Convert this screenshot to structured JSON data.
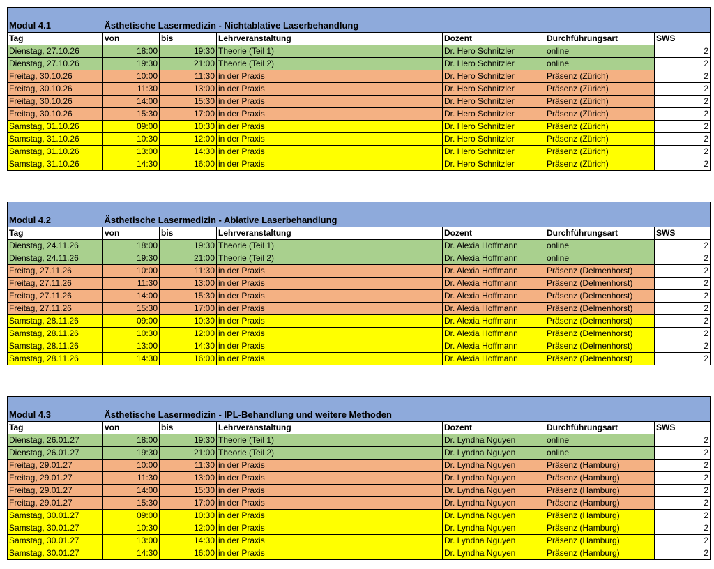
{
  "colors": {
    "header_band": "#8eaadb",
    "online_row": "#a9d08e",
    "friday_row": "#f4b183",
    "saturday_row": "#ffff00"
  },
  "columns": [
    "Tag",
    "von",
    "bis",
    "Lehrveranstaltung",
    "Dozent",
    "Durchführungsart",
    "SWS"
  ],
  "modules": [
    {
      "code": "Modul 4.1",
      "title": "Ästhetische Lasermedizin - Nichtablative Laserbehandlung",
      "rows": [
        {
          "tag": "Dienstag, 27.10.26",
          "von": "18:00",
          "bis": "19:30",
          "lehr": "Theorie (Teil 1)",
          "dozent": "Dr. Hero Schnitzler",
          "art": "online",
          "sws": "2",
          "kind": "online"
        },
        {
          "tag": "Dienstag, 27.10.26",
          "von": "19:30",
          "bis": "21:00",
          "lehr": "Theorie (Teil 2)",
          "dozent": "Dr. Hero Schnitzler",
          "art": "online",
          "sws": "2",
          "kind": "online"
        },
        {
          "tag": "Freitag, 30.10.26",
          "von": "10:00",
          "bis": "11:30",
          "lehr": "in der Praxis",
          "dozent": "Dr. Hero Schnitzler",
          "art": "Präsenz (Zürich)",
          "sws": "2",
          "kind": "friday"
        },
        {
          "tag": "Freitag, 30.10.26",
          "von": "11:30",
          "bis": "13:00",
          "lehr": "in der Praxis",
          "dozent": "Dr. Hero Schnitzler",
          "art": "Präsenz (Zürich)",
          "sws": "2",
          "kind": "friday"
        },
        {
          "tag": "Freitag, 30.10.26",
          "von": "14:00",
          "bis": "15:30",
          "lehr": "in der Praxis",
          "dozent": "Dr. Hero Schnitzler",
          "art": "Präsenz (Zürich)",
          "sws": "2",
          "kind": "friday"
        },
        {
          "tag": "Freitag, 30.10.26",
          "von": "15:30",
          "bis": "17:00",
          "lehr": "in der Praxis",
          "dozent": "Dr. Hero Schnitzler",
          "art": "Präsenz (Zürich)",
          "sws": "2",
          "kind": "friday"
        },
        {
          "tag": "Samstag, 31.10.26",
          "von": "09:00",
          "bis": "10:30",
          "lehr": "in der Praxis",
          "dozent": "Dr. Hero Schnitzler",
          "art": "Präsenz (Zürich)",
          "sws": "2",
          "kind": "saturday"
        },
        {
          "tag": "Samstag, 31.10.26",
          "von": "10:30",
          "bis": "12:00",
          "lehr": "in der Praxis",
          "dozent": "Dr. Hero Schnitzler",
          "art": "Präsenz (Zürich)",
          "sws": "2",
          "kind": "saturday"
        },
        {
          "tag": "Samstag, 31.10.26",
          "von": "13:00",
          "bis": "14:30",
          "lehr": "in der Praxis",
          "dozent": "Dr. Hero Schnitzler",
          "art": "Präsenz (Zürich)",
          "sws": "2",
          "kind": "saturday"
        },
        {
          "tag": "Samstag, 31.10.26",
          "von": "14:30",
          "bis": "16:00",
          "lehr": "in der Praxis",
          "dozent": "Dr. Hero Schnitzler",
          "art": "Präsenz (Zürich)",
          "sws": "2",
          "kind": "saturday"
        }
      ]
    },
    {
      "code": "Modul 4.2",
      "title": "Ästhetische Lasermedizin - Ablative Laserbehandlung",
      "rows": [
        {
          "tag": "Dienstag, 24.11.26",
          "von": "18:00",
          "bis": "19:30",
          "lehr": "Theorie (Teil 1)",
          "dozent": "Dr. Alexia Hoffmann",
          "art": "online",
          "sws": "2",
          "kind": "online"
        },
        {
          "tag": "Dienstag, 24.11.26",
          "von": "19:30",
          "bis": "21:00",
          "lehr": "Theorie (Teil 2)",
          "dozent": "Dr. Alexia Hoffmann",
          "art": "online",
          "sws": "2",
          "kind": "online"
        },
        {
          "tag": "Freitag, 27.11.26",
          "von": "10:00",
          "bis": "11:30",
          "lehr": "in der Praxis",
          "dozent": "Dr. Alexia Hoffmann",
          "art": "Präsenz (Delmenhorst)",
          "sws": "2",
          "kind": "friday"
        },
        {
          "tag": "Freitag, 27.11.26",
          "von": "11:30",
          "bis": "13:00",
          "lehr": "in der Praxis",
          "dozent": "Dr. Alexia Hoffmann",
          "art": "Präsenz (Delmenhorst)",
          "sws": "2",
          "kind": "friday"
        },
        {
          "tag": "Freitag, 27.11.26",
          "von": "14:00",
          "bis": "15:30",
          "lehr": "in der Praxis",
          "dozent": "Dr. Alexia Hoffmann",
          "art": "Präsenz (Delmenhorst)",
          "sws": "2",
          "kind": "friday"
        },
        {
          "tag": "Freitag, 27.11.26",
          "von": "15:30",
          "bis": "17:00",
          "lehr": "in der Praxis",
          "dozent": "Dr. Alexia Hoffmann",
          "art": "Präsenz (Delmenhorst)",
          "sws": "2",
          "kind": "friday"
        },
        {
          "tag": "Samstag, 28.11.26",
          "von": "09:00",
          "bis": "10:30",
          "lehr": "in der Praxis",
          "dozent": "Dr. Alexia Hoffmann",
          "art": "Präsenz (Delmenhorst)",
          "sws": "2",
          "kind": "saturday"
        },
        {
          "tag": "Samstag, 28.11.26",
          "von": "10:30",
          "bis": "12:00",
          "lehr": "in der Praxis",
          "dozent": "Dr. Alexia Hoffmann",
          "art": "Präsenz (Delmenhorst)",
          "sws": "2",
          "kind": "saturday"
        },
        {
          "tag": "Samstag, 28.11.26",
          "von": "13:00",
          "bis": "14:30",
          "lehr": "in der Praxis",
          "dozent": "Dr. Alexia Hoffmann",
          "art": "Präsenz (Delmenhorst)",
          "sws": "2",
          "kind": "saturday"
        },
        {
          "tag": "Samstag, 28.11.26",
          "von": "14:30",
          "bis": "16:00",
          "lehr": "in der Praxis",
          "dozent": "Dr. Alexia Hoffmann",
          "art": "Präsenz (Delmenhorst)",
          "sws": "2",
          "kind": "saturday"
        }
      ]
    },
    {
      "code": "Modul 4.3",
      "title": "Ästhetische Lasermedizin - IPL-Behandlung und weitere Methoden",
      "rows": [
        {
          "tag": "Dienstag, 26.01.27",
          "von": "18:00",
          "bis": "19:30",
          "lehr": "Theorie (Teil 1)",
          "dozent": "Dr. Lyndha Nguyen",
          "art": "online",
          "sws": "2",
          "kind": "online"
        },
        {
          "tag": "Dienstag, 26.01.27",
          "von": "19:30",
          "bis": "21:00",
          "lehr": "Theorie (Teil 2)",
          "dozent": "Dr. Lyndha Nguyen",
          "art": "online",
          "sws": "2",
          "kind": "online"
        },
        {
          "tag": "Freitag, 29.01.27",
          "von": "10:00",
          "bis": "11:30",
          "lehr": "in der Praxis",
          "dozent": "Dr. Lyndha Nguyen",
          "art": "Präsenz (Hamburg)",
          "sws": "2",
          "kind": "friday"
        },
        {
          "tag": "Freitag, 29.01.27",
          "von": "11:30",
          "bis": "13:00",
          "lehr": "in der Praxis",
          "dozent": "Dr. Lyndha Nguyen",
          "art": "Präsenz (Hamburg)",
          "sws": "2",
          "kind": "friday"
        },
        {
          "tag": "Freitag, 29.01.27",
          "von": "14:00",
          "bis": "15:30",
          "lehr": "in der Praxis",
          "dozent": "Dr. Lyndha Nguyen",
          "art": "Präsenz (Hamburg)",
          "sws": "2",
          "kind": "friday"
        },
        {
          "tag": "Freitag, 29.01.27",
          "von": "15:30",
          "bis": "17:00",
          "lehr": "in der Praxis",
          "dozent": "Dr. Lyndha Nguyen",
          "art": "Präsenz (Hamburg)",
          "sws": "2",
          "kind": "friday"
        },
        {
          "tag": "Samstag, 30.01.27",
          "von": "09:00",
          "bis": "10:30",
          "lehr": "in der Praxis",
          "dozent": "Dr. Lyndha Nguyen",
          "art": "Präsenz (Hamburg)",
          "sws": "2",
          "kind": "saturday"
        },
        {
          "tag": "Samstag, 30.01.27",
          "von": "10:30",
          "bis": "12:00",
          "lehr": "in der Praxis",
          "dozent": "Dr. Lyndha Nguyen",
          "art": "Präsenz (Hamburg)",
          "sws": "2",
          "kind": "saturday"
        },
        {
          "tag": "Samstag, 30.01.27",
          "von": "13:00",
          "bis": "14:30",
          "lehr": "in der Praxis",
          "dozent": "Dr. Lyndha Nguyen",
          "art": "Präsenz (Hamburg)",
          "sws": "2",
          "kind": "saturday"
        },
        {
          "tag": "Samstag, 30.01.27",
          "von": "14:30",
          "bis": "16:00",
          "lehr": "in der Praxis",
          "dozent": "Dr. Lyndha Nguyen",
          "art": "Präsenz (Hamburg)",
          "sws": "2",
          "kind": "saturday"
        }
      ]
    }
  ]
}
